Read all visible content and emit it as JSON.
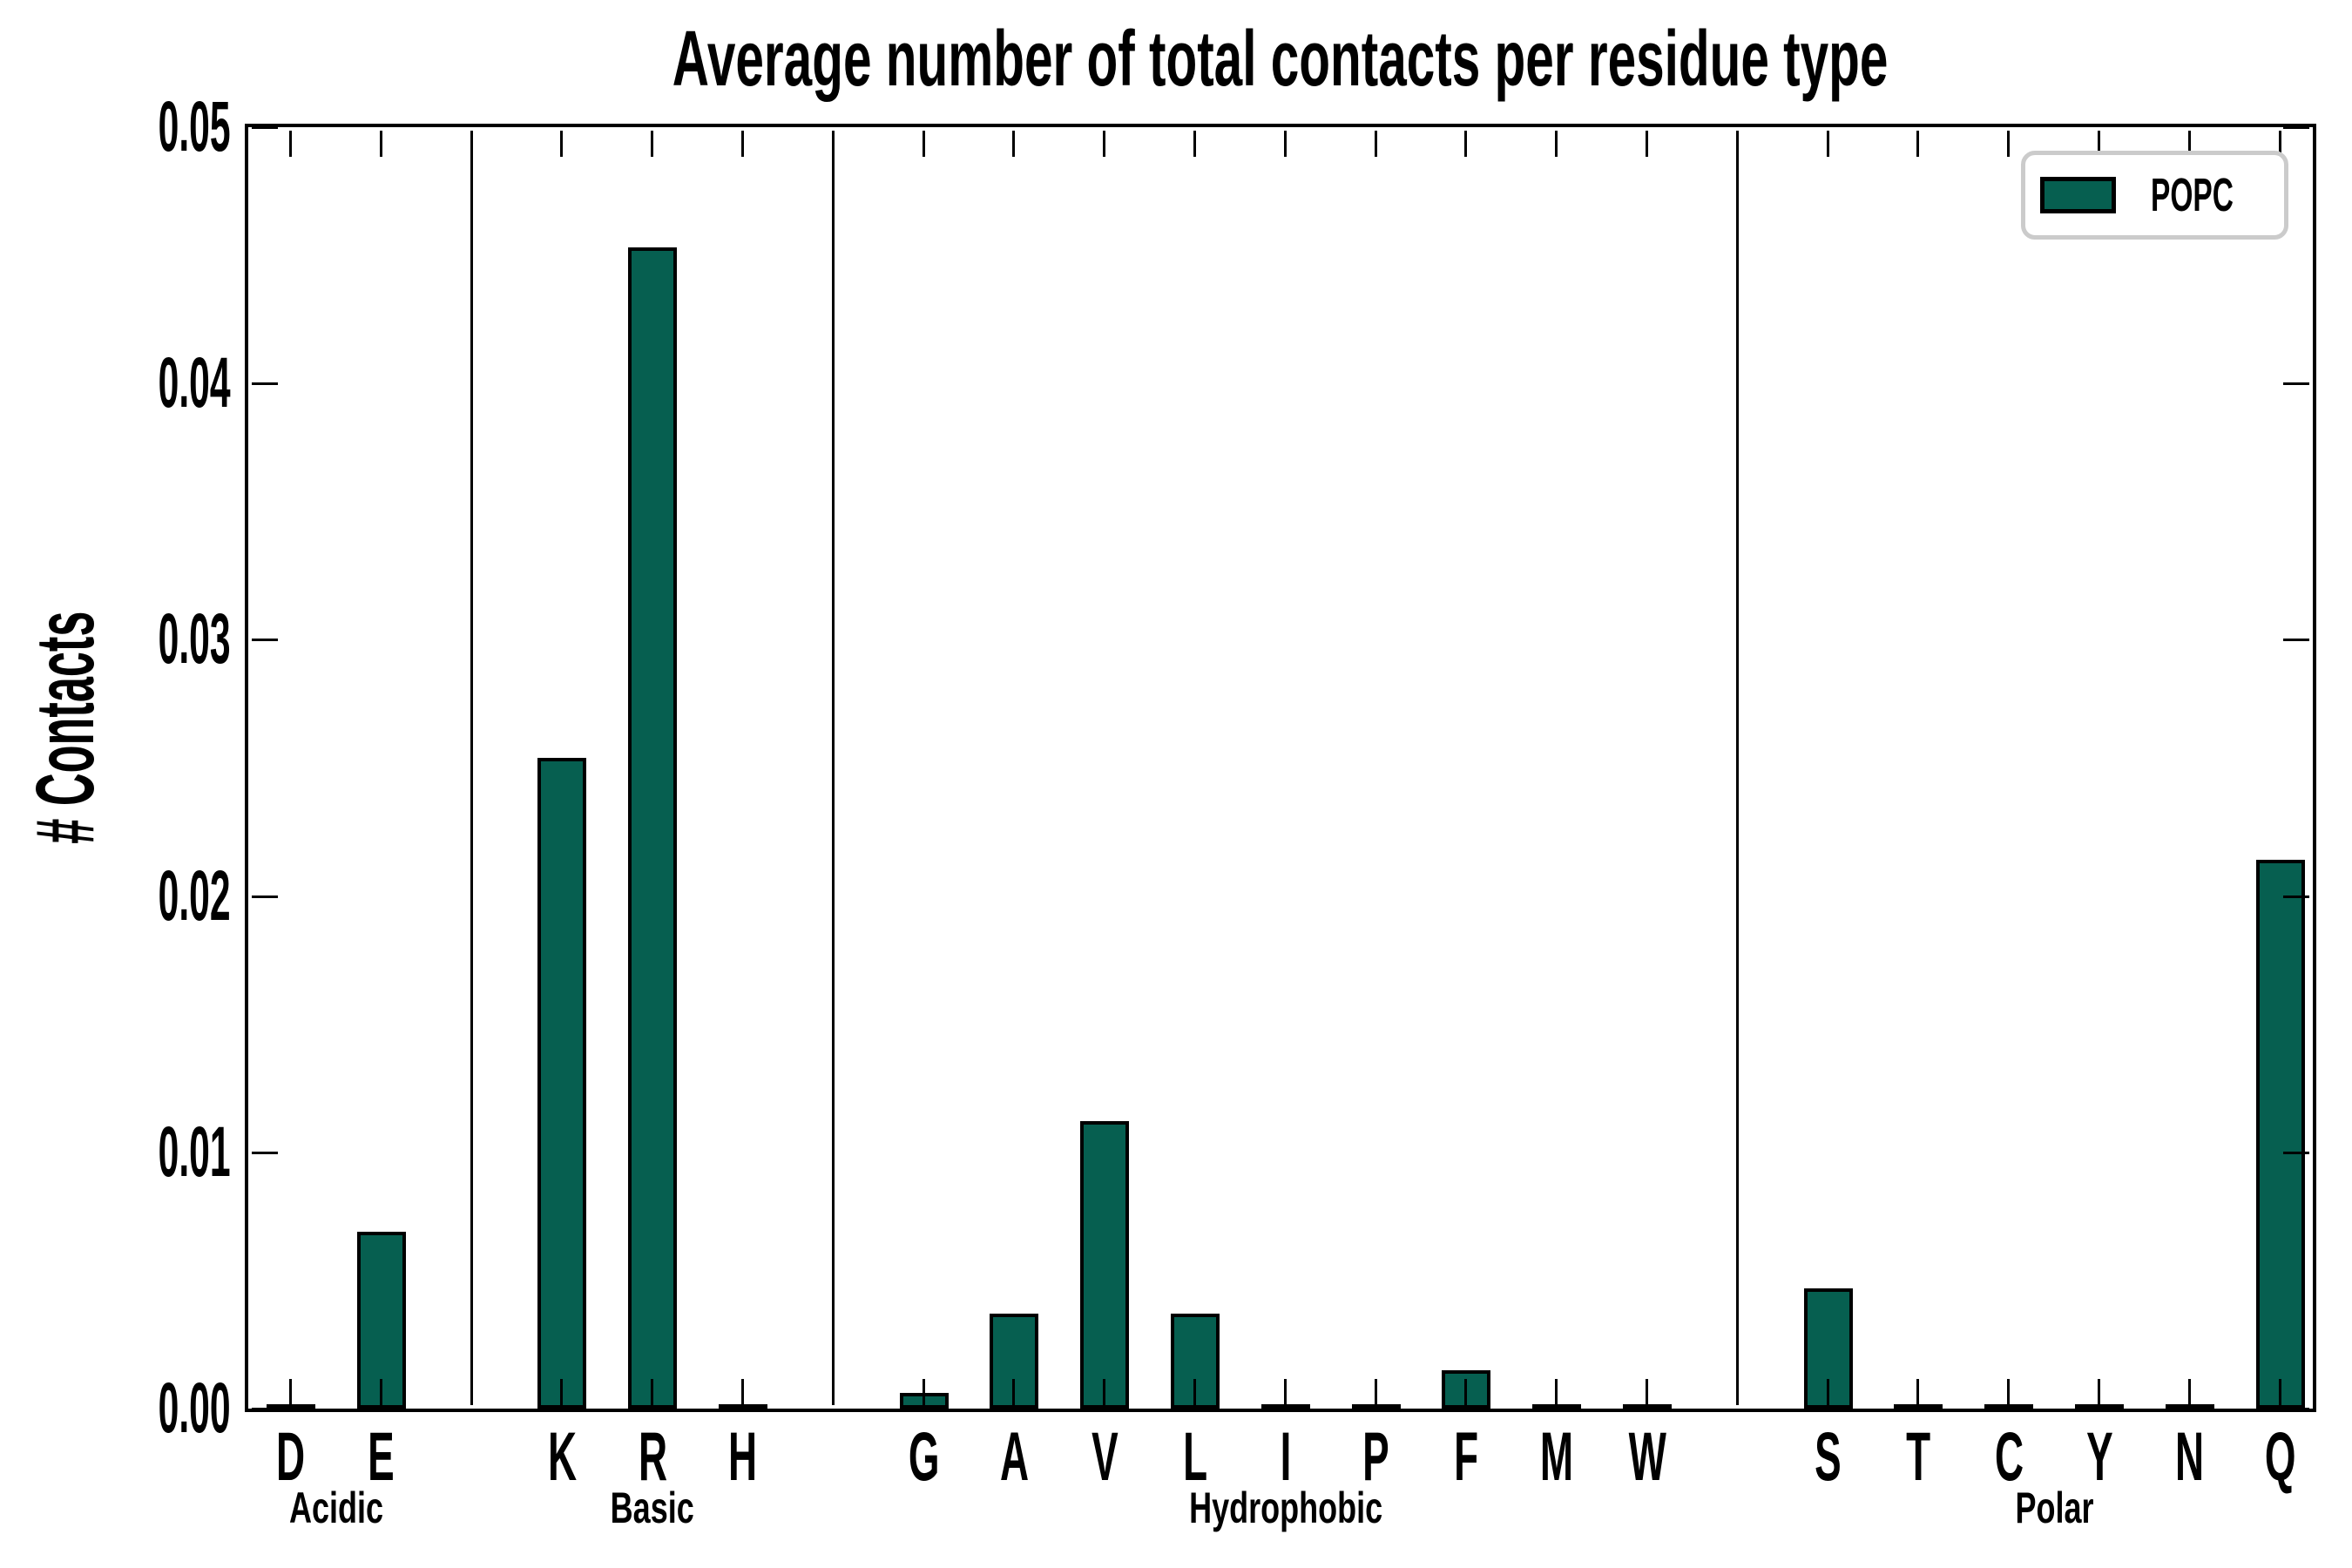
{
  "chart_data": {
    "type": "bar",
    "title": "Average number of total contacts per residue type",
    "ylabel": "# Contacts",
    "xlabel": "",
    "ylim": [
      0.0,
      0.05
    ],
    "yticks": [
      "0.00",
      "0.01",
      "0.02",
      "0.03",
      "0.04",
      "0.05"
    ],
    "grid": false,
    "legend": [
      "POPC"
    ],
    "legend_position": "upper right",
    "bar_color": "#065f50",
    "bar_edge_color": "#000000",
    "legend_border_color": "#cbcbcb",
    "groups": [
      {
        "label": "Acidic",
        "categories": [
          "D",
          "E"
        ],
        "values": [
          0.0,
          0.0069
        ]
      },
      {
        "label": "Basic",
        "categories": [
          "K",
          "R",
          "H"
        ],
        "values": [
          0.0254,
          0.0453,
          0.0
        ]
      },
      {
        "label": "Hydrophobic",
        "categories": [
          "G",
          "A",
          "V",
          "L",
          "I",
          "P",
          "F",
          "M",
          "W"
        ],
        "values": [
          0.0006,
          0.0037,
          0.0112,
          0.0037,
          0.0,
          0.0,
          0.0015,
          0.0,
          0.0
        ]
      },
      {
        "label": "Polar",
        "categories": [
          "S",
          "T",
          "C",
          "Y",
          "N",
          "Q"
        ],
        "values": [
          0.0047,
          0.0,
          0.0,
          0.0,
          0.0,
          0.0214
        ]
      }
    ]
  }
}
